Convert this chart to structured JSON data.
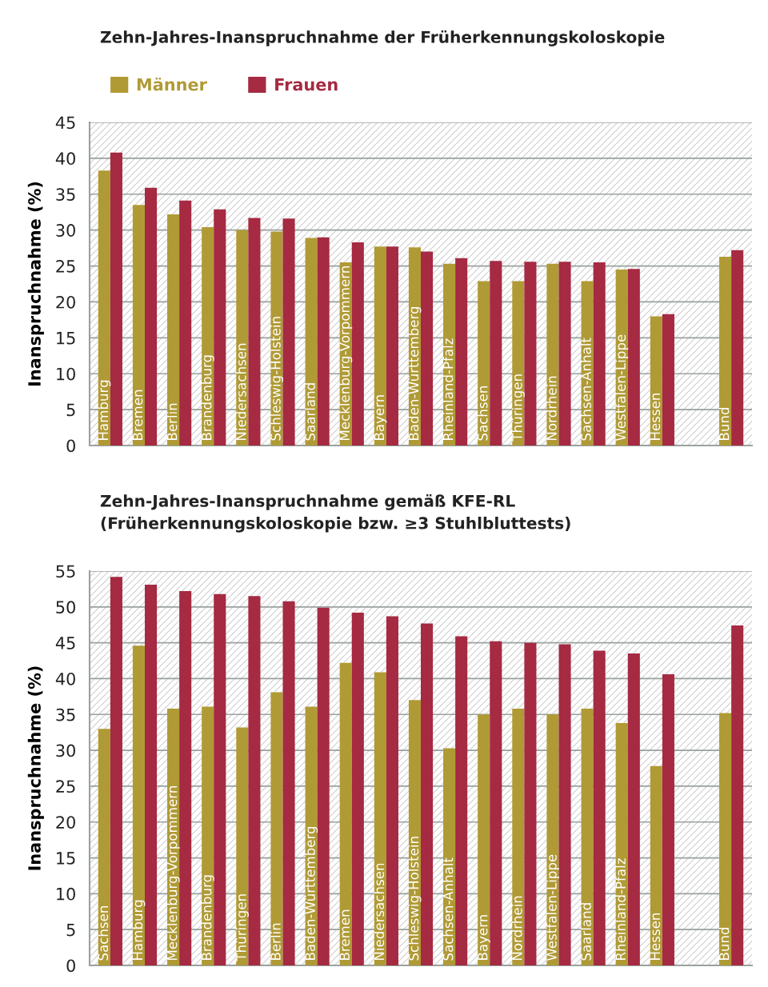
{
  "chart_data": [
    {
      "type": "bar",
      "title": "Zehn-Jahres-Inanspruchnahme der Früherkennungskoloskopie",
      "ylabel": "Inanspruchnahme (%)",
      "categories": [
        "Hamburg",
        "Bremen",
        "Berlin",
        "Brandenburg",
        "Niedersachsen",
        "Schleswig-Holstein",
        "Saarland",
        "Mecklenburg-Vorpommern",
        "Bayern",
        "Baden-Württemberg",
        "Rheinland-Pfalz",
        "Sachsen",
        "Thüringen",
        "Nordrhein",
        "Sachsen-Anhalt",
        "Westfalen-Lippe",
        "Hessen",
        null,
        "Bund"
      ],
      "series": [
        {
          "name": "Männer",
          "color": "#b09a35",
          "values": [
            38.3,
            33.5,
            32.2,
            30.4,
            30.0,
            29.8,
            28.9,
            25.5,
            27.7,
            27.6,
            25.3,
            22.9,
            22.9,
            25.3,
            22.9,
            24.5,
            18.0,
            null,
            26.3
          ]
        },
        {
          "name": "Frauen",
          "color": "#a52a42",
          "values": [
            40.8,
            35.9,
            34.1,
            32.9,
            31.7,
            31.6,
            29.0,
            28.3,
            27.7,
            27.0,
            26.1,
            25.7,
            25.6,
            25.6,
            25.5,
            24.6,
            18.3,
            null,
            27.2
          ]
        }
      ],
      "ylim": [
        0,
        45
      ],
      "yticks": [
        0,
        5,
        10,
        15,
        20,
        25,
        30,
        35,
        40,
        45
      ],
      "grid": "y",
      "legend": "top left"
    },
    {
      "type": "bar",
      "title": "Zehn-Jahres-Inanspruchnahme gemäß KFE-RL\n(Früherkennungskoloskopie bzw. ≥3 Stuhlbluttests)",
      "ylabel": "Inanspruchnahme (%)",
      "categories": [
        "Sachsen",
        "Hamburg",
        "Mecklenburg-Vorpommern",
        "Brandenburg",
        "Thüringen",
        "Berlin",
        "Baden-Württemberg",
        "Bremen",
        "Niedersachsen",
        "Schleswig-Holstein",
        "Sachsen-Anhalt",
        "Bayern",
        "Nordrhein",
        "Westfalen-Lippe",
        "Saarland",
        "Rheinland-Pfalz",
        "Hessen",
        null,
        "Bund"
      ],
      "series": [
        {
          "color": "#b09a35",
          "values": [
            33.0,
            44.6,
            35.8,
            36.1,
            33.2,
            38.1,
            36.1,
            42.2,
            40.9,
            37.0,
            30.3,
            35.0,
            35.8,
            35.0,
            35.8,
            33.8,
            27.8,
            null,
            35.2
          ]
        },
        {
          "color": "#a52a42",
          "values": [
            54.2,
            53.1,
            52.2,
            51.8,
            51.5,
            50.8,
            49.9,
            49.2,
            48.7,
            47.7,
            45.9,
            45.2,
            45.0,
            44.8,
            43.9,
            43.5,
            40.6,
            null,
            47.4
          ]
        }
      ],
      "ylim": [
        0,
        55
      ],
      "yticks": [
        0,
        5,
        10,
        15,
        20,
        25,
        30,
        35,
        40,
        45,
        50,
        55
      ],
      "grid": "y"
    }
  ]
}
